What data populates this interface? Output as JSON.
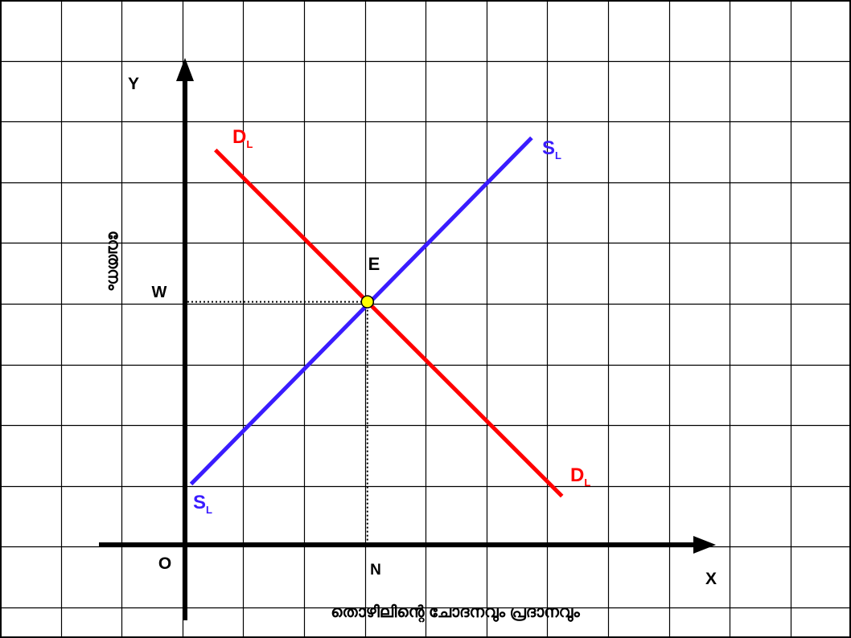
{
  "chart_data": {
    "type": "line",
    "grid": true,
    "x_axis_label": "X",
    "y_axis_label": "Y",
    "origin_label": "O",
    "x_title": "തൊഴിലിന്റെ ചോദനവും പ്രദാനവും",
    "y_title": "വേതനം",
    "equilibrium_label": "E",
    "wage_label": "W",
    "quantity_label": "N",
    "xlim": [
      0,
      10
    ],
    "ylim": [
      0,
      10
    ],
    "series": [
      {
        "name_main": "D",
        "name_sub": "L",
        "color": "#ff0000",
        "points": [
          [
            0.5,
            6.5
          ],
          [
            6.2,
            0.8
          ]
        ]
      },
      {
        "name_main": "S",
        "name_sub": "L",
        "color": "#3a1cff",
        "points": [
          [
            0.1,
            1.0
          ],
          [
            5.7,
            6.7
          ]
        ]
      }
    ],
    "equilibrium_point": [
      3.0,
      4.0
    ],
    "equilibrium_color": "#ffff00"
  }
}
